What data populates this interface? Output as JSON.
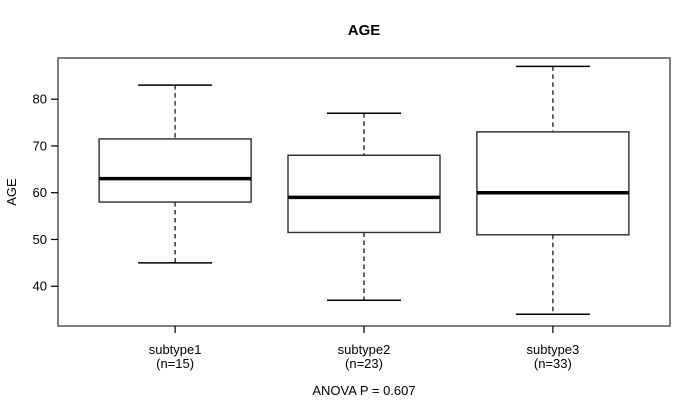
{
  "chart_data": {
    "type": "boxplot",
    "title": "AGE",
    "ylabel": "AGE",
    "xlabel": "",
    "annotation": "ANOVA P = 0.607",
    "ylim": [
      31.5,
      88.8
    ],
    "yticks": [
      40,
      50,
      60,
      70,
      80
    ],
    "grid": false,
    "legend_position": "none",
    "groups": [
      {
        "label": "subtype1",
        "sublabel": "(n=15)",
        "n": 15,
        "stats": {
          "whisker_low": 45,
          "q1": 58,
          "median": 63,
          "q3": 71.5,
          "whisker_high": 83
        }
      },
      {
        "label": "subtype2",
        "sublabel": "(n=23)",
        "n": 23,
        "stats": {
          "whisker_low": 37,
          "q1": 51.5,
          "median": 59,
          "q3": 68,
          "whisker_high": 77
        }
      },
      {
        "label": "subtype3",
        "sublabel": "(n=33)",
        "n": 33,
        "stats": {
          "whisker_low": 34,
          "q1": 51,
          "median": 60,
          "q3": 73,
          "whisker_high": 87
        }
      }
    ],
    "colors": {
      "line": "#000000",
      "box_stroke": "#2b2b2b",
      "box_fill": "#ffffff",
      "frame": "#555555",
      "background": "#ffffff"
    }
  }
}
